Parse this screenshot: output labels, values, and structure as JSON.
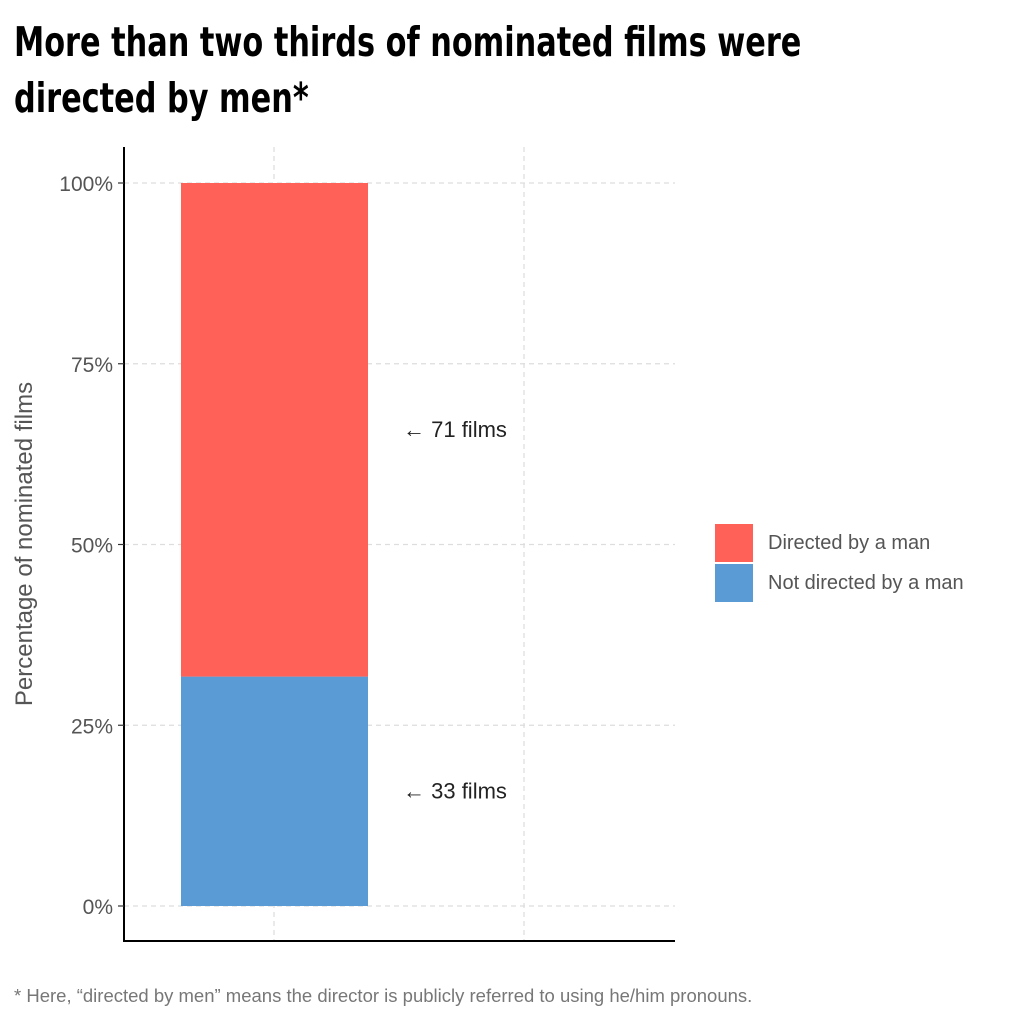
{
  "title": {
    "line1": "More than two thirds of nominated films were",
    "line2": "directed by men*"
  },
  "caption": "* Here, “directed by men” means the director is publicly referred to using he/him pronouns.",
  "chart_data": {
    "type": "bar",
    "stacked": true,
    "ylabel": "Percentage of nominated films",
    "ylim": [
      0,
      100
    ],
    "yticks": [
      0,
      25,
      50,
      75,
      100
    ],
    "ytick_labels": [
      "0%",
      "25%",
      "50%",
      "75%",
      "100%"
    ],
    "grid": true,
    "legend_position": "right",
    "series": [
      {
        "name": "Directed by a man",
        "count": 71,
        "value": 68.27,
        "color": "#ff6159",
        "annotation": "← 71 films"
      },
      {
        "name": "Not directed by a man",
        "count": 33,
        "value": 31.73,
        "color": "#5b9bd5",
        "annotation": "← 33 films"
      }
    ]
  }
}
